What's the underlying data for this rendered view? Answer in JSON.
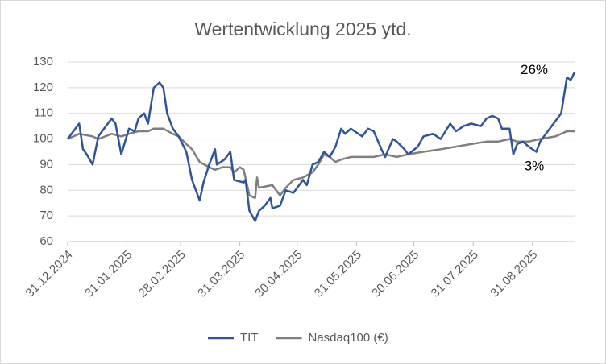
{
  "chart_data": {
    "type": "line",
    "title": "Wertentwicklung 2025 ytd.",
    "xlim": [
      "2024-12-31",
      "2025-09-22"
    ],
    "xticks": [
      {
        "value": "2024-12-31",
        "label": "31.12.2024"
      },
      {
        "value": "2025-01-31",
        "label": "31.01.2025"
      },
      {
        "value": "2025-02-28",
        "label": "28.02.2025"
      },
      {
        "value": "2025-03-31",
        "label": "31.03.2025"
      },
      {
        "value": "2025-04-30",
        "label": "30.04.2025"
      },
      {
        "value": "2025-05-31",
        "label": "31.05.2025"
      },
      {
        "value": "2025-06-30",
        "label": "30.06.2025"
      },
      {
        "value": "2025-07-31",
        "label": "31.07.2025"
      },
      {
        "value": "2025-08-31",
        "label": "31.08.2025"
      }
    ],
    "ylim": [
      60,
      130
    ],
    "yticks": [
      60,
      70,
      80,
      90,
      100,
      110,
      120,
      130
    ],
    "grid": true,
    "legend": "bottom",
    "series": [
      {
        "name": "TIT",
        "color": "#2f5597",
        "x": [
          "2024-12-31",
          "2025-01-03",
          "2025-01-06",
          "2025-01-08",
          "2025-01-10",
          "2025-01-13",
          "2025-01-16",
          "2025-01-19",
          "2025-01-23",
          "2025-01-25",
          "2025-01-28",
          "2025-02-01",
          "2025-02-04",
          "2025-02-06",
          "2025-02-09",
          "2025-02-11",
          "2025-02-14",
          "2025-02-17",
          "2025-02-19",
          "2025-02-21",
          "2025-02-24",
          "2025-02-27",
          "2025-03-03",
          "2025-03-06",
          "2025-03-10",
          "2025-03-12",
          "2025-03-15",
          "2025-03-18",
          "2025-03-19",
          "2025-03-23",
          "2025-03-26",
          "2025-03-28",
          "2025-04-02",
          "2025-04-03",
          "2025-04-05",
          "2025-04-08",
          "2025-04-10",
          "2025-04-13",
          "2025-04-16",
          "2025-04-17",
          "2025-04-21",
          "2025-04-24",
          "2025-04-28",
          "2025-05-03",
          "2025-05-05",
          "2025-05-08",
          "2025-05-11",
          "2025-05-14",
          "2025-05-17",
          "2025-05-20",
          "2025-05-23",
          "2025-05-25",
          "2025-05-28",
          "2025-06-03",
          "2025-06-06",
          "2025-06-09",
          "2025-06-13",
          "2025-06-15",
          "2025-06-19",
          "2025-06-21",
          "2025-06-25",
          "2025-06-27",
          "2025-07-02",
          "2025-07-05",
          "2025-07-10",
          "2025-07-14",
          "2025-07-19",
          "2025-07-22",
          "2025-07-26",
          "2025-07-30",
          "2025-08-04",
          "2025-08-07",
          "2025-08-10",
          "2025-08-13",
          "2025-08-15",
          "2025-08-19",
          "2025-08-21",
          "2025-08-23",
          "2025-08-26",
          "2025-08-29",
          "2025-09-02",
          "2025-09-04",
          "2025-09-08",
          "2025-09-12",
          "2025-09-15",
          "2025-09-18",
          "2025-09-20",
          "2025-09-22"
        ],
        "values": [
          100,
          103,
          106,
          96,
          94,
          90,
          101,
          104,
          108,
          106,
          94,
          104,
          103,
          108,
          110,
          106,
          120,
          122,
          120,
          110,
          104,
          101,
          95,
          84,
          76,
          83,
          90,
          96,
          90,
          92,
          95,
          84,
          83,
          84,
          72,
          68,
          72,
          74,
          77,
          73,
          74,
          80,
          79,
          84,
          82,
          90,
          91,
          95,
          93,
          97,
          104,
          102,
          104,
          101,
          104,
          103,
          96,
          93,
          100,
          99,
          96,
          94,
          97,
          101,
          102,
          100,
          106,
          103,
          105,
          106,
          105,
          108,
          109,
          108,
          104,
          104,
          94,
          98,
          99,
          97,
          95,
          99,
          103,
          107,
          110,
          124,
          123,
          126
        ]
      },
      {
        "name": "Nasdaq100 (€)",
        "color": "#7f7f7f",
        "x": [
          "2024-12-31",
          "2025-01-06",
          "2025-01-13",
          "2025-01-16",
          "2025-01-23",
          "2025-01-28",
          "2025-02-01",
          "2025-02-06",
          "2025-02-11",
          "2025-02-14",
          "2025-02-19",
          "2025-02-24",
          "2025-02-27",
          "2025-03-03",
          "2025-03-06",
          "2025-03-10",
          "2025-03-15",
          "2025-03-18",
          "2025-03-22",
          "2025-03-26",
          "2025-03-28",
          "2025-03-31",
          "2025-04-02",
          "2025-04-05",
          "2025-04-08",
          "2025-04-09",
          "2025-04-10",
          "2025-04-17",
          "2025-04-21",
          "2025-04-24",
          "2025-04-28",
          "2025-05-03",
          "2025-05-08",
          "2025-05-11",
          "2025-05-14",
          "2025-05-17",
          "2025-05-20",
          "2025-05-23",
          "2025-05-28",
          "2025-06-03",
          "2025-06-09",
          "2025-06-15",
          "2025-06-21",
          "2025-06-27",
          "2025-07-05",
          "2025-07-14",
          "2025-07-22",
          "2025-07-30",
          "2025-08-07",
          "2025-08-13",
          "2025-08-19",
          "2025-08-23",
          "2025-08-29",
          "2025-09-04",
          "2025-09-12",
          "2025-09-18",
          "2025-09-22"
        ],
        "values": [
          100,
          102,
          101,
          100,
          102,
          101,
          102,
          103,
          103,
          104,
          104,
          102,
          101,
          98,
          96,
          91,
          89,
          88,
          89,
          89,
          87,
          89,
          88,
          78,
          77,
          85,
          81,
          82,
          78,
          81,
          84,
          85,
          87,
          90,
          94,
          93,
          91,
          92,
          93,
          93,
          93,
          94,
          93,
          94,
          95,
          96,
          97,
          98,
          99,
          99,
          100,
          99,
          99,
          100,
          101,
          103,
          103
        ]
      }
    ],
    "annotations": [
      "26%",
      "3%"
    ]
  }
}
